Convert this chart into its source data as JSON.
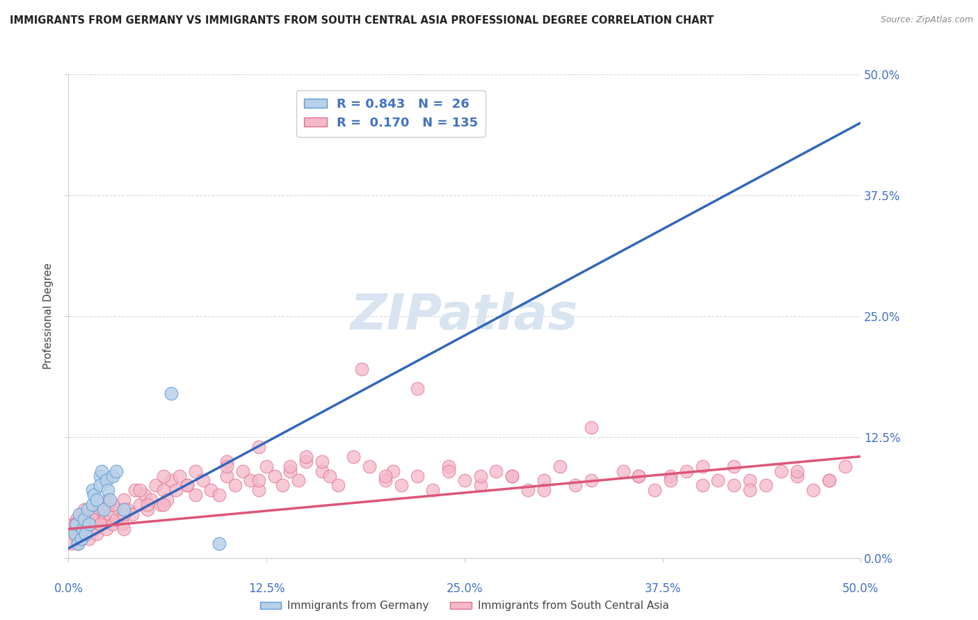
{
  "title": "IMMIGRANTS FROM GERMANY VS IMMIGRANTS FROM SOUTH CENTRAL ASIA PROFESSIONAL DEGREE CORRELATION CHART",
  "source_text": "Source: ZipAtlas.com",
  "ylabel": "Professional Degree",
  "xlim": [
    0,
    50
  ],
  "ylim": [
    0,
    50
  ],
  "legend_blue_R": "0.843",
  "legend_blue_N": "26",
  "legend_pink_R": "0.170",
  "legend_pink_N": "135",
  "legend_blue_label": "Immigrants from Germany",
  "legend_pink_label": "Immigrants from South Central Asia",
  "blue_fill_color": "#b8d0e8",
  "blue_edge_color": "#5b9bd5",
  "pink_fill_color": "#f4b8c8",
  "pink_edge_color": "#e07090",
  "blue_line_color": "#3366bb",
  "pink_line_color": "#dd5577",
  "title_color": "#222222",
  "axis_label_color": "#4472c4",
  "watermark_color": "#d8e4f0",
  "background_color": "#ffffff",
  "grid_color": "#cccccc",
  "blue_scatter_x": [
    0.4,
    0.5,
    0.6,
    0.7,
    0.8,
    0.9,
    1.0,
    1.1,
    1.2,
    1.3,
    1.5,
    1.5,
    1.6,
    1.8,
    2.0,
    2.0,
    2.1,
    2.2,
    2.4,
    2.5,
    2.6,
    2.8,
    3.0,
    3.5,
    6.5,
    9.5
  ],
  "blue_scatter_y": [
    2.5,
    3.5,
    1.5,
    4.5,
    2.0,
    3.0,
    4.0,
    2.5,
    5.0,
    3.5,
    7.0,
    5.5,
    6.5,
    6.0,
    8.5,
    7.5,
    9.0,
    5.0,
    8.0,
    7.0,
    6.0,
    8.5,
    9.0,
    5.0,
    17.0,
    1.5
  ],
  "blue_trend_x": [
    0,
    50
  ],
  "blue_trend_y": [
    1.0,
    45.0
  ],
  "pink_scatter_x": [
    0.3,
    0.4,
    0.5,
    0.6,
    0.7,
    0.8,
    0.8,
    0.9,
    1.0,
    1.1,
    1.2,
    1.3,
    1.4,
    1.5,
    1.6,
    1.7,
    1.8,
    1.9,
    2.0,
    2.1,
    2.2,
    2.4,
    2.5,
    2.6,
    2.8,
    3.0,
    3.2,
    3.4,
    3.5,
    3.7,
    4.0,
    4.2,
    4.5,
    4.8,
    5.0,
    5.2,
    5.5,
    5.8,
    6.0,
    6.2,
    6.5,
    6.8,
    7.0,
    7.5,
    8.0,
    8.5,
    9.0,
    9.5,
    10.0,
    10.5,
    11.0,
    11.5,
    12.0,
    12.5,
    13.0,
    13.5,
    14.0,
    14.5,
    15.0,
    16.0,
    16.5,
    17.0,
    18.0,
    19.0,
    20.0,
    20.5,
    21.0,
    22.0,
    23.0,
    24.0,
    25.0,
    26.0,
    27.0,
    28.0,
    29.0,
    30.0,
    31.0,
    32.0,
    33.0,
    35.0,
    36.0,
    37.0,
    38.0,
    39.0,
    40.0,
    41.0,
    42.0,
    43.0,
    44.0,
    45.0,
    46.0,
    47.0,
    48.0,
    49.0,
    22.0,
    36.0,
    43.0,
    10.0,
    14.0,
    18.5,
    24.0,
    28.0,
    33.0,
    38.0,
    42.0,
    46.0,
    12.0,
    20.0,
    30.0,
    40.0,
    48.0,
    6.0,
    16.0,
    26.0,
    0.5,
    1.5,
    2.5,
    3.5,
    5.0,
    7.5,
    0.2,
    0.4,
    0.6,
    1.0,
    1.5,
    2.0,
    2.8,
    3.5,
    4.5,
    6.0,
    8.0,
    10.0,
    12.0,
    15.0
  ],
  "pink_scatter_y": [
    3.5,
    2.5,
    4.0,
    1.5,
    3.0,
    2.0,
    4.5,
    3.5,
    2.5,
    4.0,
    3.0,
    2.0,
    3.5,
    5.0,
    4.0,
    3.0,
    2.5,
    4.5,
    3.5,
    5.0,
    4.0,
    3.0,
    5.5,
    4.5,
    3.5,
    4.0,
    5.0,
    3.5,
    6.0,
    5.0,
    4.5,
    7.0,
    5.5,
    6.5,
    5.0,
    6.0,
    7.5,
    5.5,
    7.0,
    6.0,
    8.0,
    7.0,
    8.5,
    7.5,
    9.0,
    8.0,
    7.0,
    6.5,
    8.5,
    7.5,
    9.0,
    8.0,
    7.0,
    9.5,
    8.5,
    7.5,
    9.0,
    8.0,
    10.0,
    9.0,
    8.5,
    7.5,
    10.5,
    9.5,
    8.0,
    9.0,
    7.5,
    8.5,
    7.0,
    9.5,
    8.0,
    7.5,
    9.0,
    8.5,
    7.0,
    8.0,
    9.5,
    7.5,
    8.0,
    9.0,
    8.5,
    7.0,
    8.5,
    9.0,
    7.5,
    8.0,
    9.5,
    8.0,
    7.5,
    9.0,
    8.5,
    7.0,
    8.0,
    9.5,
    17.5,
    8.5,
    7.0,
    10.0,
    9.5,
    19.5,
    9.0,
    8.5,
    13.5,
    8.0,
    7.5,
    9.0,
    11.5,
    8.5,
    7.0,
    9.5,
    8.0,
    5.5,
    10.0,
    8.5,
    2.0,
    4.5,
    6.0,
    3.0,
    5.5,
    7.5,
    1.5,
    3.5,
    2.5,
    5.0,
    4.0,
    3.5,
    5.5,
    4.5,
    7.0,
    8.5,
    6.5,
    9.5,
    8.0,
    10.5
  ],
  "pink_trend_x": [
    0,
    50
  ],
  "pink_trend_y": [
    3.0,
    10.5
  ]
}
